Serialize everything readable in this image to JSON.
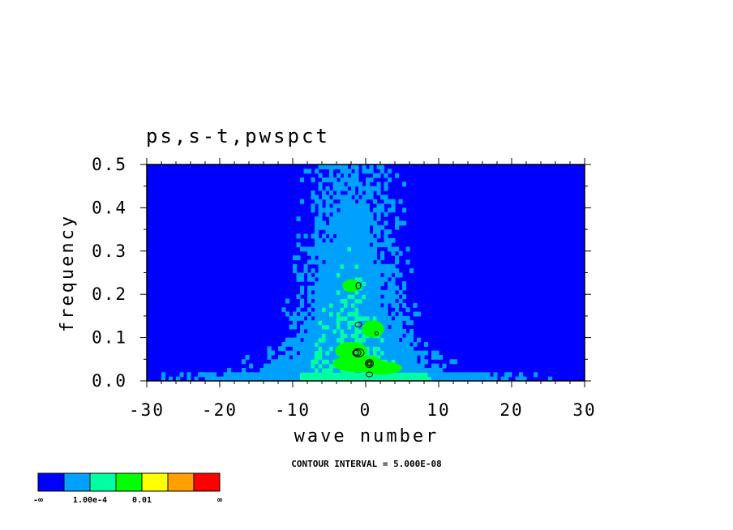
{
  "chart_data": {
    "type": "heatmap",
    "title": "ps,s-t,pwspct",
    "xlabel": "wave number",
    "ylabel": "frequency",
    "xlim": [
      -30,
      30
    ],
    "ylim": [
      0.0,
      0.5
    ],
    "x_ticks": [
      "-30",
      "-20",
      "-10",
      "0",
      "10",
      "20",
      "30"
    ],
    "x_tick_values": [
      -30,
      -20,
      -10,
      0,
      10,
      20,
      30
    ],
    "y_ticks": [
      "0.0",
      "0.1",
      "0.2",
      "0.3",
      "0.4",
      "0.5"
    ],
    "y_tick_values": [
      0.0,
      0.1,
      0.2,
      0.3,
      0.4,
      0.5
    ],
    "contour_note": "CONTOUR INTERVAL = 5.000E-08",
    "colorbar": {
      "colors": [
        "#0000ff",
        "#00a0ff",
        "#00ffa0",
        "#00ff00",
        "#ffff00",
        "#ffa000",
        "#ff0000"
      ],
      "labels": [
        "-∞",
        "1.00e-4",
        "0.01",
        "∞"
      ],
      "levels": [
        0.0001,
        0.01
      ]
    },
    "description_values": {
      "background_level": "below 1.00e-4",
      "peak_wavenumber": 0,
      "peak_frequency": 0.03
    }
  }
}
